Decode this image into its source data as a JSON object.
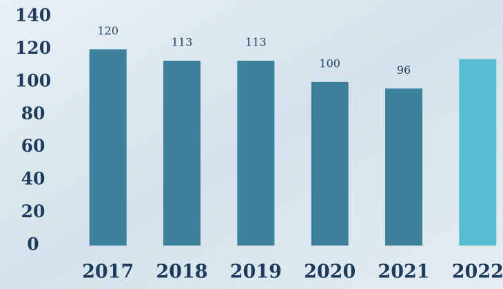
{
  "chart_data": {
    "type": "bar",
    "categories": [
      "2017",
      "2018",
      "2019",
      "2020",
      "2021",
      "2022"
    ],
    "values": [
      120,
      113,
      113,
      100,
      96,
      114
    ],
    "value_labels": [
      "120",
      "113",
      "113",
      "100",
      "96",
      null
    ],
    "colors": [
      "#3e7f9e",
      "#3e7f9e",
      "#3e7f9e",
      "#3e7f9e",
      "#3e7f9e",
      "#56bccf"
    ],
    "ylim": [
      0,
      140
    ],
    "yticks": [
      0,
      20,
      40,
      60,
      80,
      100,
      120,
      140
    ],
    "grid": false
  }
}
